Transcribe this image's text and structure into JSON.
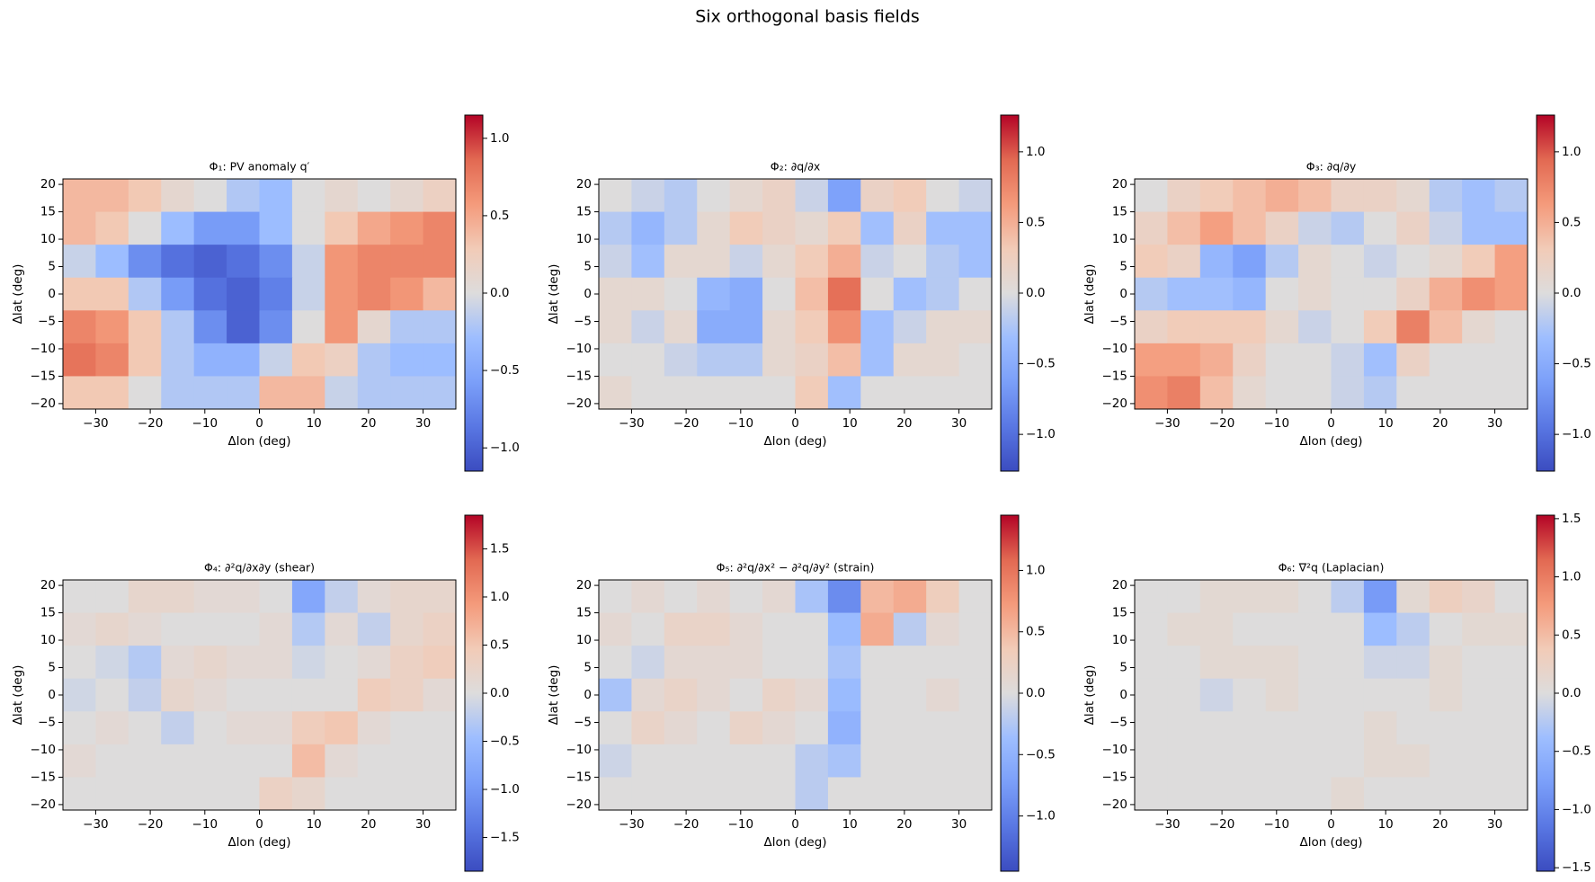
{
  "title": "Six orthogonal basis fields",
  "chart_data": [
    {
      "type": "heatmap",
      "title": "Φ₁: PV anomaly q′",
      "xlabel": "Δlon (deg)",
      "ylabel": "Δlat (deg)",
      "colormap": "coolwarm",
      "x": [
        -33,
        -27,
        -21,
        -15,
        -9,
        -3,
        3,
        9,
        15,
        21,
        27,
        33
      ],
      "y": [
        18,
        12,
        6,
        0,
        -6,
        -12,
        -18
      ],
      "z": [
        [
          0.4,
          0.4,
          0.3,
          0.1,
          0.0,
          -0.2,
          -0.3,
          0.0,
          0.1,
          0.0,
          0.1,
          0.2
        ],
        [
          0.4,
          0.3,
          0.0,
          -0.3,
          -0.6,
          -0.6,
          -0.3,
          0.0,
          0.3,
          0.5,
          0.6,
          0.7
        ],
        [
          -0.1,
          -0.3,
          -0.7,
          -0.9,
          -1.0,
          -0.9,
          -0.7,
          -0.1,
          0.6,
          0.7,
          0.7,
          0.7
        ],
        [
          0.3,
          0.3,
          -0.2,
          -0.6,
          -0.9,
          -1.0,
          -0.8,
          -0.1,
          0.6,
          0.7,
          0.6,
          0.4
        ],
        [
          0.7,
          0.6,
          0.3,
          -0.2,
          -0.7,
          -1.0,
          -0.7,
          0.0,
          0.6,
          0.1,
          -0.2,
          -0.2
        ],
        [
          0.8,
          0.7,
          0.3,
          -0.2,
          -0.4,
          -0.4,
          -0.1,
          0.3,
          0.2,
          -0.2,
          -0.3,
          -0.3
        ],
        [
          0.3,
          0.3,
          0.0,
          -0.2,
          -0.2,
          -0.2,
          0.4,
          0.4,
          -0.1,
          -0.2,
          -0.2,
          -0.2
        ]
      ],
      "xlim": [
        -36,
        36
      ],
      "ylim": [
        -21,
        21
      ],
      "xticks": [
        {
          "value": -30,
          "label": "−30"
        },
        {
          "value": -20,
          "label": "−20"
        },
        {
          "value": -10,
          "label": "−10"
        },
        0,
        10,
        20,
        30
      ],
      "yticks": [
        {
          "value": -20,
          "label": "−20"
        },
        {
          "value": -15,
          "label": "−15"
        },
        {
          "value": -10,
          "label": "−10"
        },
        {
          "value": -5,
          "label": "−5"
        },
        0,
        5,
        10,
        15,
        20
      ],
      "clim": [
        -1.15,
        1.15
      ],
      "cticks": [
        {
          "value": -1.0,
          "label": "−1.0"
        },
        {
          "value": -0.5,
          "label": "−0.5"
        },
        {
          "value": 0,
          "label": "0.0"
        },
        0.5,
        {
          "value": 1.0,
          "label": "1.0"
        }
      ]
    },
    {
      "type": "heatmap",
      "title": "Φ₂: ∂q/∂x",
      "xlabel": "Δlon (deg)",
      "ylabel": "Δlat (deg)",
      "colormap": "coolwarm",
      "x": [
        -33,
        -27,
        -21,
        -15,
        -9,
        -3,
        3,
        9,
        15,
        21,
        27,
        33
      ],
      "y": [
        18,
        12,
        6,
        0,
        -6,
        -12,
        -18
      ],
      "z": [
        [
          0.0,
          -0.1,
          -0.2,
          0.0,
          0.1,
          0.2,
          -0.1,
          -0.6,
          0.2,
          0.3,
          0.0,
          -0.1
        ],
        [
          -0.2,
          -0.4,
          -0.2,
          0.1,
          0.3,
          0.2,
          0.1,
          0.3,
          -0.3,
          0.2,
          -0.3,
          -0.3
        ],
        [
          -0.1,
          -0.3,
          0.1,
          0.1,
          -0.1,
          0.1,
          0.3,
          0.5,
          -0.1,
          0.0,
          -0.2,
          -0.3
        ],
        [
          0.1,
          0.1,
          0.0,
          -0.4,
          -0.5,
          0.0,
          0.4,
          0.9,
          0.0,
          -0.3,
          -0.2,
          0.0
        ],
        [
          0.1,
          -0.1,
          0.1,
          -0.5,
          -0.5,
          0.1,
          0.3,
          0.7,
          -0.3,
          -0.1,
          0.1,
          0.1
        ],
        [
          0.0,
          0.0,
          -0.1,
          -0.2,
          -0.2,
          0.1,
          0.2,
          0.4,
          -0.3,
          0.1,
          0.1,
          0.0
        ],
        [
          0.1,
          0.0,
          0.0,
          0.0,
          0.0,
          0.0,
          0.3,
          -0.3,
          0.0,
          0.0,
          0.0,
          0.0
        ]
      ],
      "xlim": [
        -36,
        36
      ],
      "ylim": [
        -21,
        21
      ],
      "xticks": [
        {
          "value": -30,
          "label": "−30"
        },
        {
          "value": -20,
          "label": "−20"
        },
        {
          "value": -10,
          "label": "−10"
        },
        0,
        10,
        20,
        30
      ],
      "yticks": [
        {
          "value": -20,
          "label": "−20"
        },
        {
          "value": -15,
          "label": "−15"
        },
        {
          "value": -10,
          "label": "−10"
        },
        {
          "value": -5,
          "label": "−5"
        },
        0,
        5,
        10,
        15,
        20
      ],
      "clim": [
        -1.26,
        1.26
      ],
      "cticks": [
        {
          "value": -1.0,
          "label": "−1.0"
        },
        {
          "value": -0.5,
          "label": "−0.5"
        },
        {
          "value": 0,
          "label": "0.0"
        },
        0.5,
        {
          "value": 1.0,
          "label": "1.0"
        }
      ]
    },
    {
      "type": "heatmap",
      "title": "Φ₃: ∂q/∂y",
      "xlabel": "Δlon (deg)",
      "ylabel": "Δlat (deg)",
      "colormap": "coolwarm",
      "x": [
        -33,
        -27,
        -21,
        -15,
        -9,
        -3,
        3,
        9,
        15,
        21,
        27,
        33
      ],
      "y": [
        18,
        12,
        6,
        0,
        -6,
        -12,
        -18
      ],
      "z": [
        [
          0.0,
          0.2,
          0.3,
          0.4,
          0.5,
          0.4,
          0.2,
          0.2,
          0.1,
          -0.2,
          -0.3,
          -0.2
        ],
        [
          0.2,
          0.4,
          0.6,
          0.4,
          0.2,
          -0.1,
          -0.2,
          0.0,
          0.2,
          -0.1,
          -0.3,
          -0.3
        ],
        [
          0.3,
          0.2,
          -0.4,
          -0.6,
          -0.2,
          0.1,
          0.0,
          -0.1,
          0.0,
          0.1,
          0.3,
          0.6
        ],
        [
          -0.2,
          -0.3,
          -0.3,
          -0.4,
          0.0,
          0.1,
          0.0,
          0.0,
          0.2,
          0.5,
          0.7,
          0.6
        ],
        [
          0.2,
          0.3,
          0.3,
          0.3,
          0.1,
          -0.1,
          0.0,
          0.3,
          0.8,
          0.4,
          0.1,
          0.0
        ],
        [
          0.6,
          0.6,
          0.5,
          0.2,
          0.0,
          0.0,
          -0.1,
          -0.3,
          0.2,
          0.0,
          0.0,
          0.0
        ],
        [
          0.7,
          0.8,
          0.4,
          0.1,
          0.0,
          0.0,
          -0.1,
          -0.2,
          0.0,
          0.0,
          0.0,
          0.0
        ]
      ],
      "xlim": [
        -36,
        36
      ],
      "ylim": [
        -21,
        21
      ],
      "xticks": [
        {
          "value": -30,
          "label": "−30"
        },
        {
          "value": -20,
          "label": "−20"
        },
        {
          "value": -10,
          "label": "−10"
        },
        0,
        10,
        20,
        30
      ],
      "yticks": [
        {
          "value": -20,
          "label": "−20"
        },
        {
          "value": -15,
          "label": "−15"
        },
        {
          "value": -10,
          "label": "−10"
        },
        {
          "value": -5,
          "label": "−5"
        },
        0,
        5,
        10,
        15,
        20
      ],
      "clim": [
        -1.26,
        1.26
      ],
      "cticks": [
        {
          "value": -1.0,
          "label": "−1.0"
        },
        {
          "value": -0.5,
          "label": "−0.5"
        },
        {
          "value": 0,
          "label": "0.0"
        },
        0.5,
        {
          "value": 1.0,
          "label": "1.0"
        }
      ]
    },
    {
      "type": "heatmap",
      "title": "Φ₄: ∂²q/∂x∂y (shear)",
      "xlabel": "Δlon (deg)",
      "ylabel": "Δlat (deg)",
      "colormap": "coolwarm",
      "x": [
        -33,
        -27,
        -21,
        -15,
        -9,
        -3,
        3,
        9,
        15,
        21,
        27,
        33
      ],
      "y": [
        18,
        12,
        6,
        0,
        -6,
        -12,
        -18
      ],
      "z": [
        [
          0.0,
          0.0,
          0.2,
          0.2,
          0.1,
          0.1,
          0.0,
          -0.8,
          -0.2,
          0.1,
          0.2,
          0.2
        ],
        [
          0.1,
          0.2,
          0.1,
          0.0,
          0.0,
          0.0,
          0.1,
          -0.3,
          0.1,
          -0.2,
          0.2,
          0.3
        ],
        [
          0.0,
          -0.1,
          -0.3,
          0.1,
          0.2,
          0.1,
          0.1,
          -0.1,
          0.0,
          0.1,
          0.3,
          0.4
        ],
        [
          -0.1,
          0.0,
          -0.2,
          0.2,
          0.1,
          0.0,
          0.0,
          0.0,
          0.0,
          0.4,
          0.3,
          0.1
        ],
        [
          0.0,
          0.1,
          0.0,
          -0.2,
          0.0,
          0.1,
          0.1,
          0.4,
          0.5,
          0.1,
          0.0,
          0.0
        ],
        [
          0.1,
          0.0,
          0.0,
          0.0,
          0.0,
          0.0,
          0.0,
          0.6,
          0.1,
          0.0,
          0.0,
          0.0
        ],
        [
          0.0,
          0.0,
          0.0,
          0.0,
          0.0,
          0.0,
          0.3,
          0.2,
          0.0,
          0.0,
          0.0,
          0.0
        ]
      ],
      "xlim": [
        -36,
        36
      ],
      "ylim": [
        -21,
        21
      ],
      "xticks": [
        {
          "value": -30,
          "label": "−30"
        },
        {
          "value": -20,
          "label": "−20"
        },
        {
          "value": -10,
          "label": "−10"
        },
        0,
        10,
        20,
        30
      ],
      "yticks": [
        {
          "value": -20,
          "label": "−20"
        },
        {
          "value": -15,
          "label": "−15"
        },
        {
          "value": -10,
          "label": "−10"
        },
        {
          "value": -5,
          "label": "−5"
        },
        0,
        5,
        10,
        15,
        20
      ],
      "clim": [
        -1.85,
        1.85
      ],
      "cticks": [
        {
          "value": -1.5,
          "label": "−1.5"
        },
        {
          "value": -1.0,
          "label": "−1.0"
        },
        {
          "value": -0.5,
          "label": "−0.5"
        },
        {
          "value": 0,
          "label": "0.0"
        },
        0.5,
        {
          "value": 1.0,
          "label": "1.0"
        },
        1.5
      ]
    },
    {
      "type": "heatmap",
      "title": "Φ₅: ∂²q/∂x² − ∂²q/∂y² (strain)",
      "xlabel": "Δlon (deg)",
      "ylabel": "Δlat (deg)",
      "colormap": "coolwarm",
      "x": [
        -33,
        -27,
        -21,
        -15,
        -9,
        -3,
        3,
        9,
        15,
        21,
        27,
        33
      ],
      "y": [
        18,
        12,
        6,
        0,
        -6,
        -12,
        -18
      ],
      "z": [
        [
          0.0,
          0.1,
          0.0,
          0.1,
          0.0,
          0.1,
          -0.3,
          -0.9,
          0.5,
          0.6,
          0.3,
          0.0
        ],
        [
          0.1,
          0.0,
          0.2,
          0.2,
          0.1,
          0.0,
          0.0,
          -0.4,
          0.6,
          -0.2,
          0.1,
          0.0
        ],
        [
          0.0,
          -0.1,
          0.1,
          0.1,
          0.1,
          0.0,
          0.0,
          -0.3,
          0.0,
          0.0,
          0.0,
          0.0
        ],
        [
          -0.3,
          0.1,
          0.2,
          0.1,
          0.0,
          0.2,
          0.1,
          -0.4,
          0.0,
          0.0,
          0.1,
          0.0
        ],
        [
          0.0,
          0.2,
          0.1,
          0.0,
          0.2,
          0.1,
          0.0,
          -0.5,
          0.0,
          0.0,
          0.0,
          0.0
        ],
        [
          -0.1,
          0.0,
          0.0,
          0.0,
          0.0,
          0.0,
          -0.2,
          -0.3,
          0.0,
          0.0,
          0.0,
          0.0
        ],
        [
          0.0,
          0.0,
          0.0,
          0.0,
          0.0,
          0.0,
          -0.2,
          0.0,
          0.0,
          0.0,
          0.0,
          0.0
        ]
      ],
      "xlim": [
        -36,
        36
      ],
      "ylim": [
        -21,
        21
      ],
      "xticks": [
        {
          "value": -30,
          "label": "−30"
        },
        {
          "value": -20,
          "label": "−20"
        },
        {
          "value": -10,
          "label": "−10"
        },
        0,
        10,
        20,
        30
      ],
      "yticks": [
        {
          "value": -20,
          "label": "−20"
        },
        {
          "value": -15,
          "label": "−15"
        },
        {
          "value": -10,
          "label": "−10"
        },
        {
          "value": -5,
          "label": "−5"
        },
        0,
        5,
        10,
        15,
        20
      ],
      "clim": [
        -1.45,
        1.45
      ],
      "cticks": [
        {
          "value": -1.0,
          "label": "−1.0"
        },
        {
          "value": -0.5,
          "label": "−0.5"
        },
        {
          "value": 0,
          "label": "0.0"
        },
        0.5,
        {
          "value": 1.0,
          "label": "1.0"
        }
      ]
    },
    {
      "type": "heatmap",
      "title": "Φ₆: ∇²q (Laplacian)",
      "xlabel": "Δlon (deg)",
      "ylabel": "Δlat (deg)",
      "colormap": "coolwarm",
      "x": [
        -33,
        -27,
        -21,
        -15,
        -9,
        -3,
        3,
        9,
        15,
        21,
        27,
        33
      ],
      "y": [
        18,
        12,
        6,
        0,
        -6,
        -12,
        -18
      ],
      "z": [
        [
          0.0,
          0.0,
          0.1,
          0.1,
          0.1,
          0.0,
          -0.2,
          -0.8,
          0.1,
          0.3,
          0.2,
          0.0
        ],
        [
          0.0,
          0.1,
          0.1,
          0.0,
          0.0,
          0.0,
          0.0,
          -0.4,
          -0.2,
          0.0,
          0.1,
          0.1
        ],
        [
          0.0,
          0.0,
          0.1,
          0.1,
          0.1,
          0.0,
          0.0,
          -0.1,
          -0.1,
          0.1,
          0.0,
          0.0
        ],
        [
          0.0,
          0.0,
          -0.1,
          0.0,
          0.1,
          0.0,
          0.0,
          0.0,
          0.0,
          0.1,
          0.0,
          0.0
        ],
        [
          0.0,
          0.0,
          0.0,
          0.0,
          0.0,
          0.0,
          0.0,
          0.1,
          0.0,
          0.0,
          0.0,
          0.0
        ],
        [
          0.0,
          0.0,
          0.0,
          0.0,
          0.0,
          0.0,
          0.0,
          0.1,
          0.1,
          0.0,
          0.0,
          0.0
        ],
        [
          0.0,
          0.0,
          0.0,
          0.0,
          0.0,
          0.0,
          0.1,
          0.0,
          0.0,
          0.0,
          0.0,
          0.0
        ]
      ],
      "xlim": [
        -36,
        36
      ],
      "ylim": [
        -21,
        21
      ],
      "xticks": [
        {
          "value": -30,
          "label": "−30"
        },
        {
          "value": -20,
          "label": "−20"
        },
        {
          "value": -10,
          "label": "−10"
        },
        0,
        10,
        20,
        30
      ],
      "yticks": [
        {
          "value": -20,
          "label": "−20"
        },
        {
          "value": -15,
          "label": "−15"
        },
        {
          "value": -10,
          "label": "−10"
        },
        {
          "value": -5,
          "label": "−5"
        },
        0,
        5,
        10,
        15,
        20
      ],
      "clim": [
        -1.53,
        1.53
      ],
      "cticks": [
        {
          "value": -1.5,
          "label": "−1.5"
        },
        {
          "value": -1.0,
          "label": "−1.0"
        },
        {
          "value": -0.5,
          "label": "−0.5"
        },
        {
          "value": 0,
          "label": "0.0"
        },
        0.5,
        {
          "value": 1.0,
          "label": "1.0"
        },
        1.5
      ]
    }
  ]
}
